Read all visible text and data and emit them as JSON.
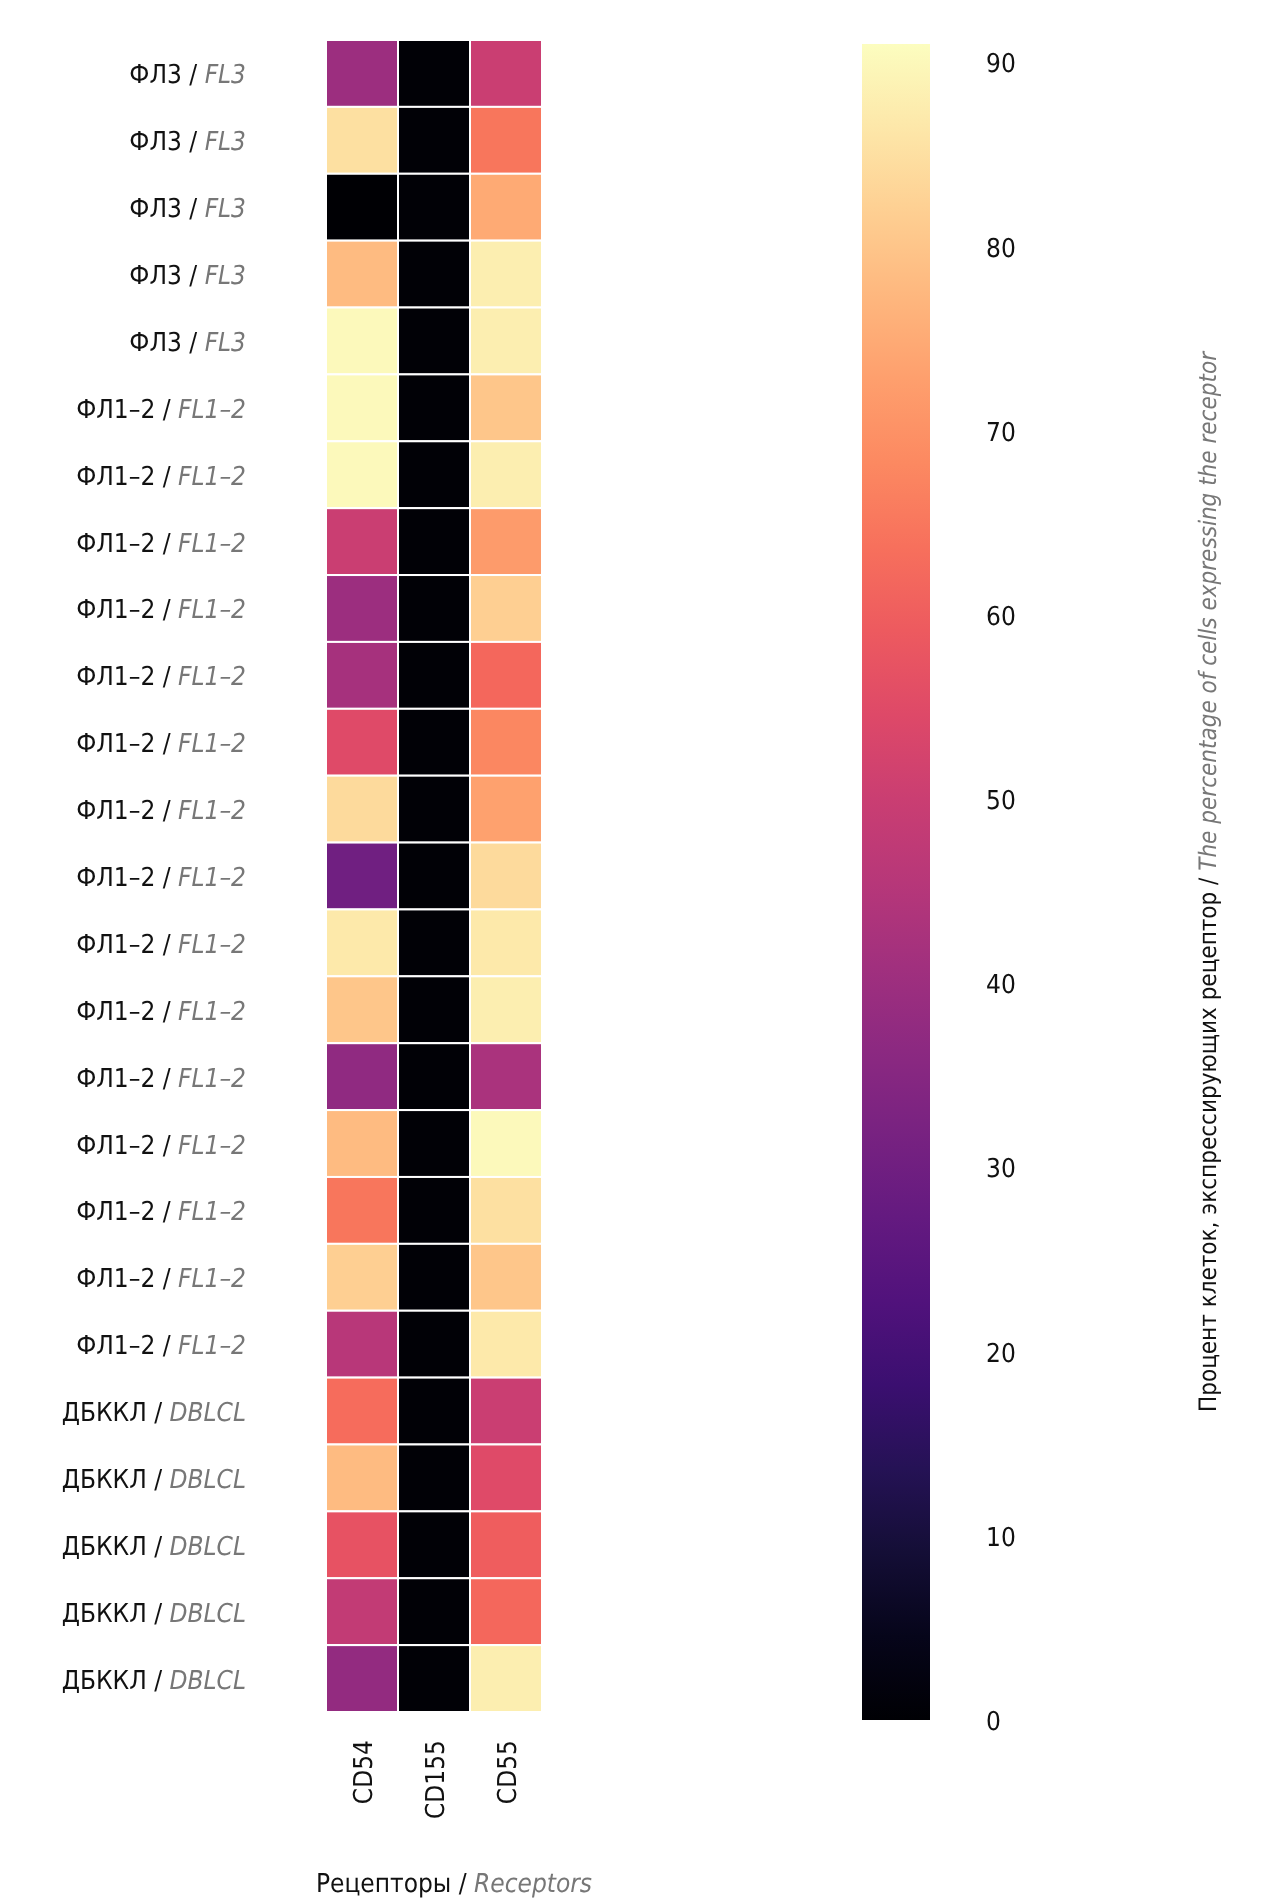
{
  "chart_data": {
    "type": "heatmap",
    "xlabel": "Рецепторы / Receptors",
    "clabel": "Процент клеток, экспрессирующих рецептор / The percentage of cells expressing the receptor",
    "categories": [
      "CD54",
      "CD155",
      "CD55"
    ],
    "y_categories": [
      "ФЛ3 / FL3",
      "ФЛ3 / FL3",
      "ФЛ3 / FL3",
      "ФЛ3 / FL3",
      "ФЛ3 / FL3",
      "ФЛ1–2 / FL1–2",
      "ФЛ1–2 / FL1–2",
      "ФЛ1–2 / FL1–2",
      "ФЛ1–2 / FL1–2",
      "ФЛ1–2 / FL1–2",
      "ФЛ1–2 / FL1–2",
      "ФЛ1–2 / FL1–2",
      "ФЛ1–2 / FL1–2",
      "ФЛ1–2 / FL1–2",
      "ФЛ1–2 / FL1–2",
      "ФЛ1–2 / FL1–2",
      "ФЛ1–2 / FL1–2",
      "ФЛ1–2 / FL1–2",
      "ФЛ1–2 / FL1–2",
      "ФЛ1–2 / FL1–2",
      "ДБККЛ / DBLCL",
      "ДБККЛ / DBLCL",
      "ДБККЛ / DBLCL",
      "ДБККЛ / DBLCL",
      "ДБККЛ / DBLCL"
    ],
    "cells": [
      [
        40,
        1,
        50
      ],
      [
        85,
        1,
        65
      ],
      [
        0,
        1,
        75
      ],
      [
        78,
        1,
        88
      ],
      [
        90,
        1,
        88
      ],
      [
        90,
        1,
        80
      ],
      [
        90,
        1,
        88
      ],
      [
        50,
        1,
        72
      ],
      [
        40,
        1,
        82
      ],
      [
        42,
        1,
        62
      ],
      [
        55,
        1,
        68
      ],
      [
        84,
        1,
        73
      ],
      [
        30,
        1,
        84
      ],
      [
        87,
        1,
        87
      ],
      [
        80,
        1,
        88
      ],
      [
        37,
        1,
        43
      ],
      [
        78,
        1,
        90
      ],
      [
        65,
        1,
        85
      ],
      [
        82,
        1,
        80
      ],
      [
        46,
        1,
        87
      ],
      [
        63,
        1,
        50
      ],
      [
        78,
        1,
        55
      ],
      [
        57,
        1,
        60
      ],
      [
        48,
        1,
        62
      ],
      [
        38,
        1,
        88
      ]
    ],
    "clim": [
      0,
      91
    ],
    "cticks": [
      0,
      10,
      20,
      30,
      40,
      50,
      60,
      70,
      80,
      90
    ]
  }
}
